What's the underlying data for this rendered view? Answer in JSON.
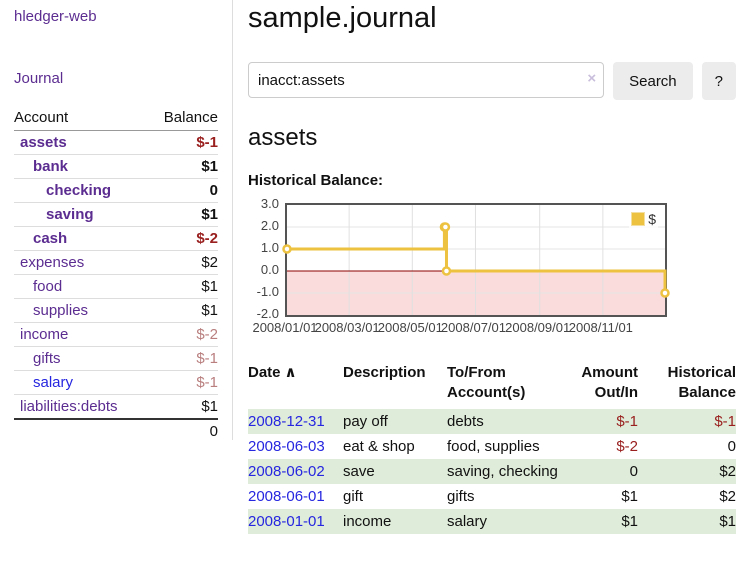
{
  "app": {
    "brand": "hledger-web",
    "nav_journal": "Journal"
  },
  "colors": {
    "accent_purple": "#5c2d91",
    "link_blue": "#2626e0",
    "negative_red": "#99201f",
    "muted_negative": "#b97e7e",
    "row_stripe_green": "#dfecd9",
    "chart_series_yellow": "#EDC240",
    "negative_region_pink": "#fadcdc",
    "zero_line_dark_red": "#8b0000",
    "button_grey": "#ececec"
  },
  "sidebar": {
    "headers": [
      "Account",
      "Balance"
    ],
    "rows": [
      {
        "account": "assets",
        "balance": "$-1",
        "depth": 0,
        "strong": true,
        "name_class": "c-purple",
        "value_class": "v-neg"
      },
      {
        "account": "bank",
        "balance": "$1",
        "depth": 1,
        "strong": true,
        "name_class": "c-purple",
        "value_class": "v-black"
      },
      {
        "account": "checking",
        "balance": "0",
        "depth": 2,
        "strong": true,
        "name_class": "c-purple",
        "value_class": "v-black"
      },
      {
        "account": "saving",
        "balance": "$1",
        "depth": 2,
        "strong": true,
        "name_class": "c-purple",
        "value_class": "v-black"
      },
      {
        "account": "cash",
        "balance": "$-2",
        "depth": 1,
        "strong": true,
        "name_class": "c-purple",
        "value_class": "v-neg"
      },
      {
        "account": "expenses",
        "balance": "$2",
        "depth": 0,
        "strong": false,
        "name_class": "c-purple",
        "value_class": "v-black"
      },
      {
        "account": "food",
        "balance": "$1",
        "depth": 1,
        "strong": false,
        "name_class": "c-purple",
        "value_class": "v-black"
      },
      {
        "account": "supplies",
        "balance": "$1",
        "depth": 1,
        "strong": false,
        "name_class": "c-purple",
        "value_class": "v-black"
      },
      {
        "account": "income",
        "balance": "$-2",
        "depth": 0,
        "strong": false,
        "name_class": "c-purple",
        "value_class": "v-muted"
      },
      {
        "account": "gifts",
        "balance": "$-1",
        "depth": 1,
        "strong": false,
        "name_class": "c-purple",
        "value_class": "v-muted"
      },
      {
        "account": "salary",
        "balance": "$-1",
        "depth": 1,
        "strong": false,
        "name_class": "c-blue",
        "value_class": "v-muted"
      },
      {
        "account": "liabilities:debts",
        "balance": "$1",
        "depth": 0,
        "strong": false,
        "name_class": "c-purple",
        "value_class": "v-black"
      }
    ],
    "total": "0"
  },
  "main": {
    "title": "sample.journal",
    "search": {
      "value": "inacct:assets",
      "clear_icon": "×",
      "button": "Search",
      "help": "?"
    },
    "section_title": "assets"
  },
  "chart_data": {
    "type": "line",
    "title": "Historical Balance:",
    "series": [
      {
        "name": "$",
        "color": "#EDC240",
        "steps": true,
        "points": [
          {
            "x": "2008/01/01",
            "y": 1
          },
          {
            "x": "2008/06/01",
            "y": 2
          },
          {
            "x": "2008/06/02",
            "y": 2
          },
          {
            "x": "2008/06/03",
            "y": 0
          },
          {
            "x": "2008/12/31",
            "y": -1
          }
        ]
      }
    ],
    "xrange": [
      "2008/01/01",
      "2008/12/31"
    ],
    "ylim": [
      -2,
      3
    ],
    "ytick_labels": [
      "3.0",
      "2.0",
      "1.0",
      "0.0",
      "-1.0",
      "-2.0"
    ],
    "yticks": [
      3,
      2,
      1,
      0,
      -1,
      -2
    ],
    "xticks": [
      "2008/01/01",
      "2008/03/01",
      "2008/05/01",
      "2008/07/01",
      "2008/09/01",
      "2008/11/01"
    ],
    "grid": true,
    "legend_position": "top-right"
  },
  "register": {
    "sort_icon": "∧",
    "columns": [
      {
        "line1": "Date",
        "line2": "",
        "align": "left",
        "sortable": true
      },
      {
        "line1": "Description",
        "line2": "",
        "align": "left"
      },
      {
        "line1": "To/From",
        "line2": "Account(s)",
        "align": "left"
      },
      {
        "line1": "Amount",
        "line2": "Out/In",
        "align": "right"
      },
      {
        "line1": "Historical",
        "line2": "Balance",
        "align": "right"
      }
    ],
    "rows": [
      {
        "date": "2008-12-31",
        "description": "pay off",
        "accounts": "debts",
        "amount": "$-1",
        "balance": "$-1",
        "amount_class": "v-neg",
        "balance_class": "v-neg"
      },
      {
        "date": "2008-06-03",
        "description": "eat & shop",
        "accounts": "food, supplies",
        "amount": "$-2",
        "balance": "0",
        "amount_class": "v-neg",
        "balance_class": "v-black"
      },
      {
        "date": "2008-06-02",
        "description": "save",
        "accounts": "saving, checking",
        "amount": "0",
        "balance": "$2",
        "amount_class": "v-black",
        "balance_class": "v-black"
      },
      {
        "date": "2008-06-01",
        "description": "gift",
        "accounts": "gifts",
        "amount": "$1",
        "balance": "$2",
        "amount_class": "v-black",
        "balance_class": "v-black"
      },
      {
        "date": "2008-01-01",
        "description": "income",
        "accounts": "salary",
        "amount": "$1",
        "balance": "$1",
        "amount_class": "v-black",
        "balance_class": "v-black"
      }
    ]
  }
}
